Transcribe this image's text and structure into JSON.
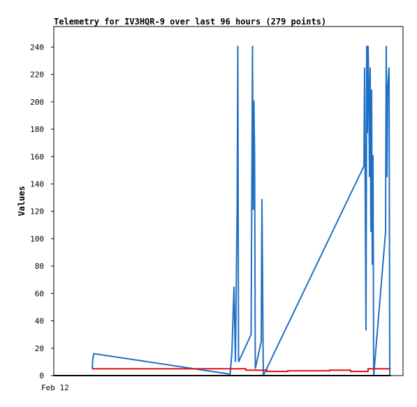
{
  "chart_data": {
    "type": "line",
    "title": "Telemetry for IV3HQR-9 over last 96 hours (279 points)",
    "xlabel": "",
    "ylabel": "Values",
    "x_tick_labels": [
      "Feb 12"
    ],
    "y_ticks": [
      0,
      20,
      40,
      60,
      80,
      100,
      120,
      140,
      160,
      180,
      200,
      220,
      240
    ],
    "ylim": [
      0,
      255
    ],
    "xlim": [
      0,
      96
    ],
    "grid": false,
    "legend": "none",
    "colors": {
      "blue": "#1f6fc5",
      "red": "#e01010",
      "black": "#000000",
      "axis": "#000000",
      "background": "#ffffff"
    },
    "series": [
      {
        "color": "#1f6fc5",
        "points": [
          [
            11.0,
            5
          ],
          [
            11.2,
            13
          ],
          [
            11.5,
            16
          ],
          [
            50.5,
            1
          ],
          [
            51.0,
            17
          ],
          [
            51.3,
            41
          ],
          [
            51.6,
            65
          ],
          [
            52.0,
            10
          ],
          [
            52.5,
            121
          ],
          [
            52.7,
            241
          ],
          [
            52.9,
            10
          ],
          [
            56.5,
            30
          ],
          [
            56.9,
            241
          ],
          [
            57.1,
            121
          ],
          [
            57.3,
            201
          ],
          [
            57.5,
            161
          ],
          [
            57.7,
            5
          ],
          [
            59.4,
            25
          ],
          [
            59.6,
            129
          ],
          [
            59.8,
            65
          ],
          [
            60.0,
            0
          ],
          [
            88.8,
            153
          ],
          [
            89.0,
            225
          ],
          [
            89.2,
            121
          ],
          [
            89.4,
            33
          ],
          [
            89.6,
            241
          ],
          [
            89.8,
            177
          ],
          [
            90.0,
            241
          ],
          [
            90.2,
            209
          ],
          [
            90.4,
            145
          ],
          [
            90.6,
            225
          ],
          [
            90.8,
            105
          ],
          [
            91.0,
            209
          ],
          [
            91.2,
            81
          ],
          [
            91.4,
            161
          ],
          [
            91.6,
            0
          ],
          [
            95.0,
            105
          ],
          [
            95.2,
            241
          ],
          [
            95.4,
            145
          ],
          [
            95.6,
            209
          ],
          [
            95.8,
            217
          ],
          [
            96.0,
            225
          ],
          [
            96.2,
            0
          ]
        ]
      },
      {
        "color": "#e01010",
        "points": [
          [
            11.0,
            5
          ],
          [
            55.0,
            5
          ],
          [
            55.0,
            4
          ],
          [
            61.0,
            4
          ],
          [
            61.0,
            3
          ],
          [
            67.0,
            3
          ],
          [
            67.0,
            3.5
          ],
          [
            79.0,
            3.5
          ],
          [
            79.0,
            4
          ],
          [
            85.0,
            4
          ],
          [
            85.0,
            3
          ],
          [
            90.0,
            3
          ],
          [
            90.0,
            5
          ],
          [
            96.5,
            5
          ]
        ]
      },
      {
        "color": "#000000",
        "points": [
          [
            0,
            0
          ],
          [
            96.5,
            0
          ]
        ]
      }
    ]
  }
}
